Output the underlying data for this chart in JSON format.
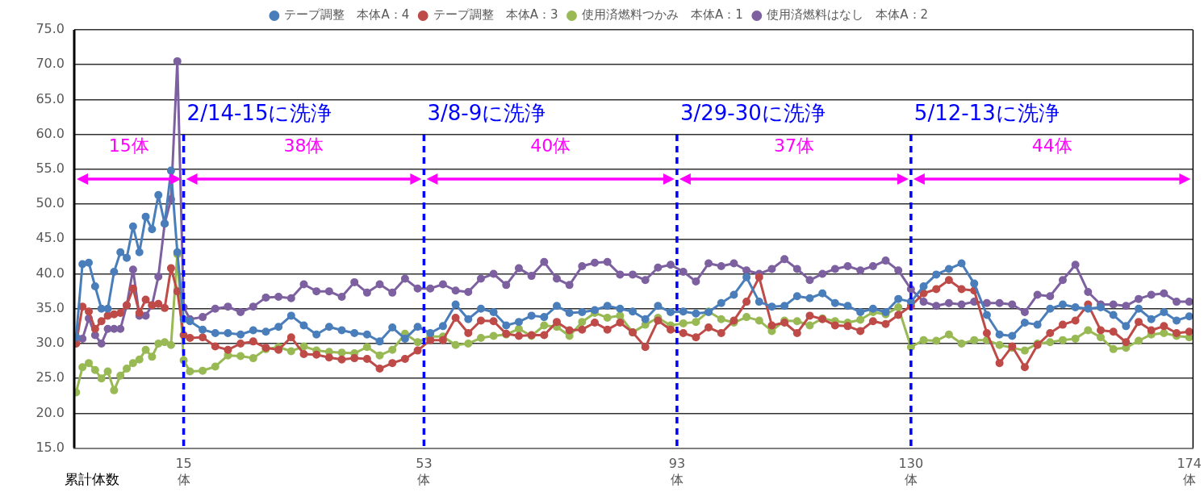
{
  "chart_data": {
    "type": "line",
    "xlabel": "累計体数",
    "legend": "top",
    "grid": "y",
    "marker": "circle",
    "line_style": "solid",
    "xlim": [
      -2.3,
      174.6
    ],
    "xticks": [
      {
        "value": 15,
        "label": "15体"
      },
      {
        "value": 53,
        "label": "53体"
      },
      {
        "value": 93,
        "label": "93体"
      },
      {
        "value": 130,
        "label": "130体"
      },
      {
        "value": 174,
        "label": "174体"
      }
    ],
    "ylim": [
      15,
      75
    ],
    "yticks": [
      {
        "value": 15,
        "label": "15.0"
      },
      {
        "value": 20,
        "label": "20.0"
      },
      {
        "value": 25,
        "label": "25.0"
      },
      {
        "value": 30,
        "label": "30.0"
      },
      {
        "value": 35,
        "label": "35.0"
      },
      {
        "value": 40,
        "label": "40.0"
      },
      {
        "value": 45,
        "label": "45.0"
      },
      {
        "value": 50,
        "label": "50.0"
      },
      {
        "value": 55,
        "label": "55.0"
      },
      {
        "value": 60,
        "label": "60.0"
      },
      {
        "value": 65,
        "label": "65.0"
      },
      {
        "value": 70,
        "label": "70.0"
      },
      {
        "value": 75,
        "label": "75.0"
      }
    ],
    "x": [
      -2,
      -1,
      0,
      1,
      2,
      3,
      4,
      5,
      6,
      7,
      8,
      9,
      10,
      11,
      12,
      13,
      14,
      15,
      16,
      18,
      20,
      22,
      24,
      26,
      28,
      30,
      32,
      34,
      36,
      38,
      40,
      42,
      44,
      46,
      48,
      50,
      52,
      54,
      56,
      58,
      60,
      62,
      64,
      66,
      68,
      70,
      72,
      74,
      76,
      78,
      80,
      82,
      84,
      86,
      88,
      90,
      92,
      94,
      96,
      98,
      100,
      102,
      104,
      106,
      108,
      110,
      112,
      114,
      116,
      118,
      120,
      122,
      124,
      126,
      128,
      130,
      132,
      134,
      136,
      138,
      140,
      142,
      144,
      146,
      148,
      150,
      152,
      154,
      156,
      158,
      160,
      162,
      164,
      166,
      168,
      170,
      172,
      174
    ],
    "series": [
      {
        "name": "テープ調整　本体A：4",
        "color": "#4a7ebb",
        "values": [
          30.9,
          41.4,
          41.6,
          38.2,
          35.0,
          35.0,
          40.3,
          43.1,
          42.3,
          46.8,
          43.1,
          48.2,
          46.4,
          51.3,
          47.2,
          54.8,
          43.1,
          33.5,
          33.2,
          32.0,
          31.5,
          31.5,
          31.3,
          31.9,
          31.7,
          32.4,
          34.0,
          32.6,
          31.3,
          32.4,
          31.9,
          31.5,
          31.3,
          30.3,
          32.3,
          30.7,
          32.4,
          31.5,
          32.5,
          35.6,
          33.5,
          35.0,
          34.5,
          32.6,
          33.1,
          34.0,
          33.8,
          35.4,
          34.4,
          34.5,
          34.8,
          35.4,
          35.0,
          34.6,
          33.5,
          35.4,
          34.5,
          34.6,
          34.3,
          34.5,
          35.8,
          37.0,
          39.5,
          36.0,
          35.3,
          35.4,
          36.8,
          36.5,
          37.2,
          35.8,
          35.4,
          34.5,
          35.0,
          34.5,
          36.4,
          36.0,
          38.2,
          39.9,
          40.7,
          41.5,
          38.6,
          34.1,
          31.3,
          31.1,
          33.0,
          32.7,
          35.0,
          35.6,
          35.2,
          35.0,
          35.2,
          34.1,
          32.5,
          35.0,
          33.5,
          34.5,
          33.3,
          33.9
        ]
      },
      {
        "name": "テープ調整　本体A：3",
        "color": "#be4b48",
        "values": [
          30.0,
          35.3,
          34.6,
          32.1,
          33.2,
          34.0,
          34.2,
          34.4,
          35.5,
          37.9,
          34.4,
          36.3,
          35.5,
          35.7,
          35.1,
          40.8,
          37.5,
          31.2,
          30.8,
          30.9,
          29.6,
          29.1,
          30.0,
          30.3,
          29.4,
          29.1,
          30.9,
          28.5,
          28.4,
          28.0,
          27.7,
          27.9,
          27.8,
          26.4,
          27.2,
          27.8,
          29.0,
          30.5,
          30.5,
          33.7,
          31.5,
          33.3,
          33.2,
          31.4,
          31.1,
          31.2,
          31.2,
          33.1,
          31.9,
          32.0,
          33.0,
          32.0,
          33.0,
          31.6,
          29.5,
          33.3,
          32.0,
          31.5,
          30.9,
          32.3,
          31.5,
          33.3,
          36.0,
          39.5,
          32.6,
          33.0,
          31.5,
          34.0,
          33.5,
          32.6,
          32.5,
          31.8,
          33.2,
          32.8,
          34.1,
          35.4,
          37.2,
          37.8,
          39.1,
          37.8,
          37.6,
          31.5,
          27.2,
          29.6,
          26.6,
          29.8,
          31.5,
          32.7,
          33.3,
          35.6,
          31.9,
          31.7,
          30.2,
          33.1,
          31.9,
          32.5,
          31.5,
          31.7
        ]
      },
      {
        "name": "使用済燃料つかみ　本体A：1",
        "color": "#98b954",
        "values": [
          23.0,
          26.6,
          27.2,
          26.2,
          25.0,
          26.0,
          23.3,
          25.4,
          26.4,
          27.2,
          27.7,
          29.1,
          28.1,
          30.0,
          30.2,
          29.8,
          42.8,
          27.6,
          26.0,
          26.1,
          26.7,
          28.3,
          28.2,
          27.9,
          29.2,
          29.5,
          28.9,
          29.6,
          29.0,
          28.8,
          28.7,
          28.6,
          29.5,
          28.3,
          29.1,
          31.4,
          30.2,
          31.0,
          31.0,
          29.8,
          30.0,
          30.8,
          31.1,
          31.3,
          32.1,
          31.1,
          32.6,
          32.4,
          31.1,
          33.1,
          34.4,
          33.7,
          34.0,
          31.6,
          32.7,
          33.7,
          32.6,
          32.9,
          33.1,
          34.6,
          33.5,
          33.0,
          33.8,
          33.3,
          31.8,
          33.3,
          33.2,
          32.6,
          33.6,
          33.2,
          33.0,
          33.4,
          34.5,
          34.2,
          35.2,
          29.5,
          30.5,
          30.4,
          31.3,
          30.0,
          30.5,
          30.5,
          29.8,
          29.4,
          29.0,
          30.0,
          30.2,
          30.5,
          30.7,
          31.9,
          30.9,
          29.2,
          29.4,
          30.4,
          31.3,
          31.5,
          31.1,
          30.9
        ]
      },
      {
        "name": "使用済燃料はなし　本体A：2",
        "color": "#7d60a0",
        "values": [
          30.9,
          30.7,
          33.6,
          31.2,
          30.0,
          32.1,
          32.1,
          32.1,
          35.5,
          40.6,
          34.0,
          34.0,
          35.5,
          39.6,
          47.2,
          50.7,
          70.5,
          35.2,
          33.5,
          33.8,
          35.0,
          35.3,
          34.5,
          35.3,
          36.6,
          36.7,
          36.5,
          38.5,
          37.5,
          37.5,
          36.7,
          38.8,
          37.3,
          38.5,
          37.3,
          39.3,
          37.9,
          37.9,
          38.5,
          37.6,
          37.4,
          39.3,
          40.0,
          38.4,
          40.8,
          39.7,
          41.7,
          39.3,
          38.4,
          41.1,
          41.6,
          41.7,
          39.9,
          39.9,
          39.1,
          40.9,
          41.3,
          40.3,
          38.9,
          41.5,
          41.1,
          41.5,
          40.5,
          40.0,
          40.7,
          42.1,
          40.7,
          39.1,
          40.0,
          40.7,
          41.1,
          40.5,
          41.1,
          41.9,
          40.5,
          37.8,
          36.0,
          35.4,
          35.8,
          35.6,
          36.0,
          35.8,
          35.8,
          35.6,
          34.5,
          37.0,
          36.8,
          39.1,
          41.3,
          37.4,
          35.6,
          35.6,
          35.4,
          36.4,
          37.0,
          37.2,
          36.0,
          36.0
        ]
      }
    ],
    "ref_lines": [
      {
        "axis": "x",
        "value": 15,
        "label": "2/14-15に洗浄",
        "color": "#0000ff",
        "line_style": "dashed"
      },
      {
        "axis": "x",
        "value": 53,
        "label": "3/8-9に洗浄",
        "color": "#0000ff",
        "line_style": "dashed"
      },
      {
        "axis": "x",
        "value": 93,
        "label": "3/29-30に洗浄",
        "color": "#0000ff",
        "line_style": "dashed"
      },
      {
        "axis": "x",
        "value": 130,
        "label": "5/12-13に洗浄",
        "color": "#0000ff",
        "line_style": "dashed"
      }
    ],
    "annotations": [
      "15体",
      "38体",
      "40体",
      "37体",
      "44体"
    ]
  }
}
